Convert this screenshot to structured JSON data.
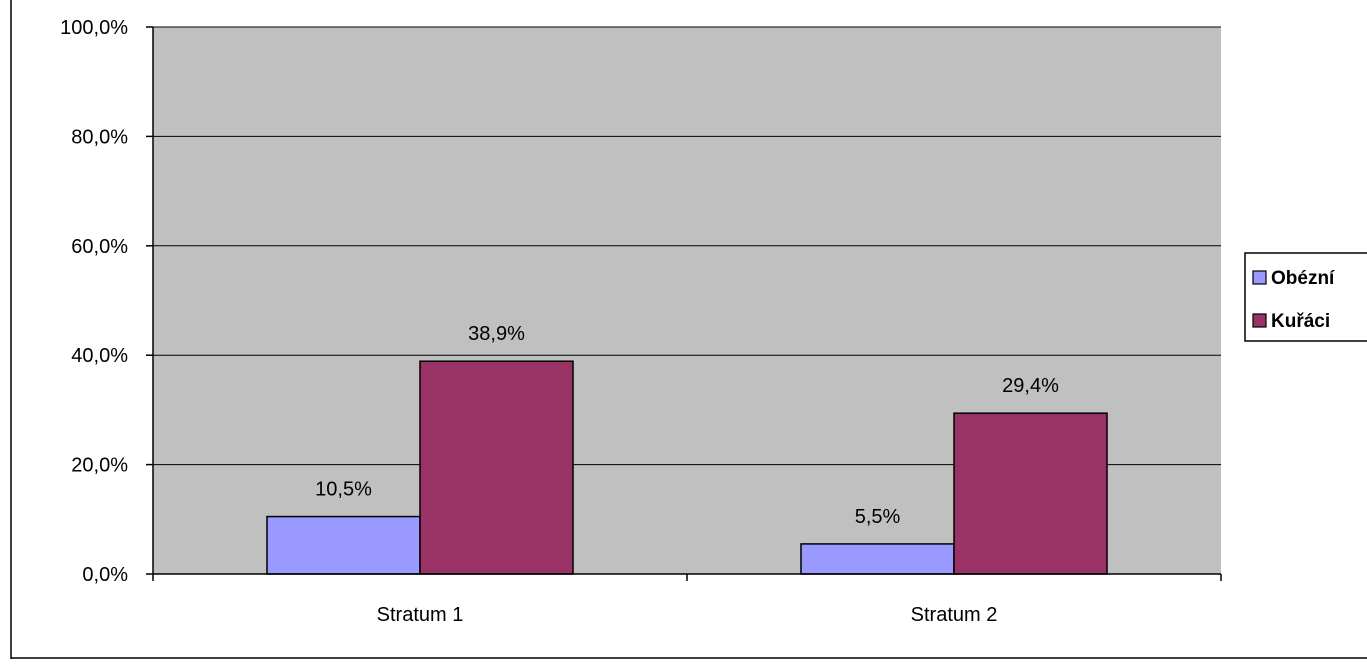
{
  "chart_data": {
    "type": "bar",
    "title": "",
    "xlabel": "",
    "ylabel": "",
    "categories": [
      "Stratum 1",
      "Stratum 2"
    ],
    "series": [
      {
        "name": "Obézní",
        "color": "#9999ff",
        "values": [
          10.5,
          5.5
        ],
        "labels": [
          "10,5%",
          "5,5%"
        ]
      },
      {
        "name": "Kuřáci",
        "color": "#993366",
        "values": [
          38.9,
          29.4
        ],
        "labels": [
          "38,9%",
          "29,4%"
        ]
      }
    ],
    "ylim": [
      0,
      100
    ],
    "yticks": [
      0,
      20,
      40,
      60,
      80,
      100
    ],
    "ytick_labels": [
      "0,0%",
      "20,0%",
      "40,0%",
      "60,0%",
      "80,0%",
      "100,0%"
    ],
    "grid": true,
    "plot_background": "#c0c0c0",
    "legend": "right"
  }
}
